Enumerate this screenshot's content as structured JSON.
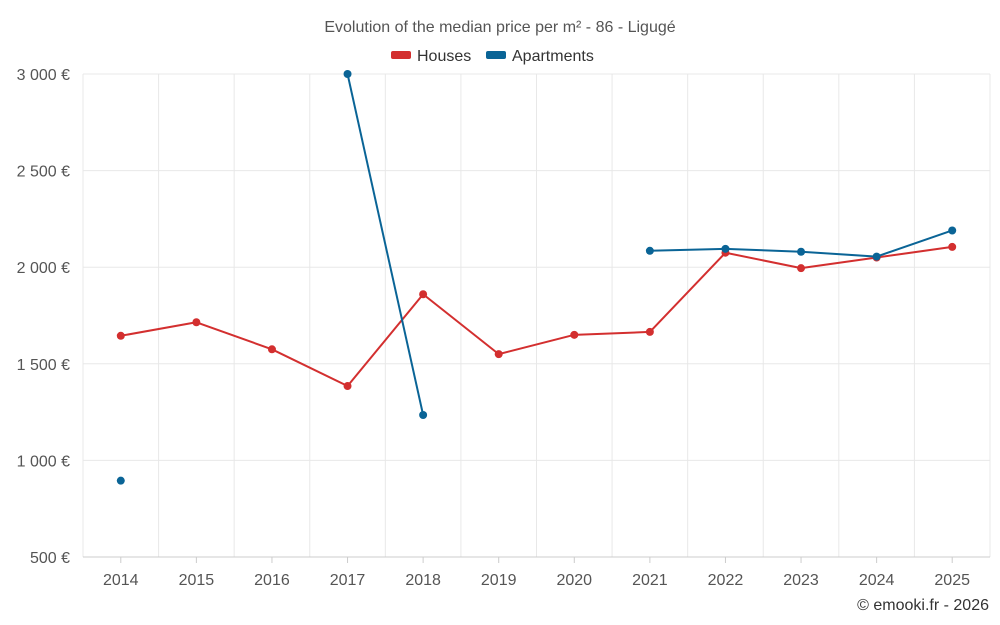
{
  "chart_data": {
    "type": "line",
    "title": "Evolution of the median price per m² - 86 - Ligugé",
    "xlabel": "",
    "ylabel": "",
    "categories": [
      "2014",
      "2015",
      "2016",
      "2017",
      "2018",
      "2019",
      "2020",
      "2021",
      "2022",
      "2023",
      "2024",
      "2025"
    ],
    "ylim": [
      500,
      3000
    ],
    "yticks": [
      500,
      1000,
      1500,
      2000,
      2500,
      3000
    ],
    "ytick_labels": [
      "500 €",
      "1 000 €",
      "1 500 €",
      "2 000 €",
      "2 500 €",
      "3 000 €"
    ],
    "grid": true,
    "legend_position": "top-center",
    "series": [
      {
        "name": "Houses",
        "color": "#d32f2f",
        "values": [
          1645,
          1715,
          1575,
          1385,
          1860,
          1550,
          1650,
          1665,
          2075,
          1995,
          2050,
          2105
        ]
      },
      {
        "name": "Apartments",
        "color": "#0a6496",
        "values": [
          895,
          null,
          null,
          3000,
          1235,
          null,
          null,
          2085,
          2095,
          2080,
          2055,
          2190
        ]
      }
    ]
  },
  "credit": "© emooki.fr - 2026"
}
